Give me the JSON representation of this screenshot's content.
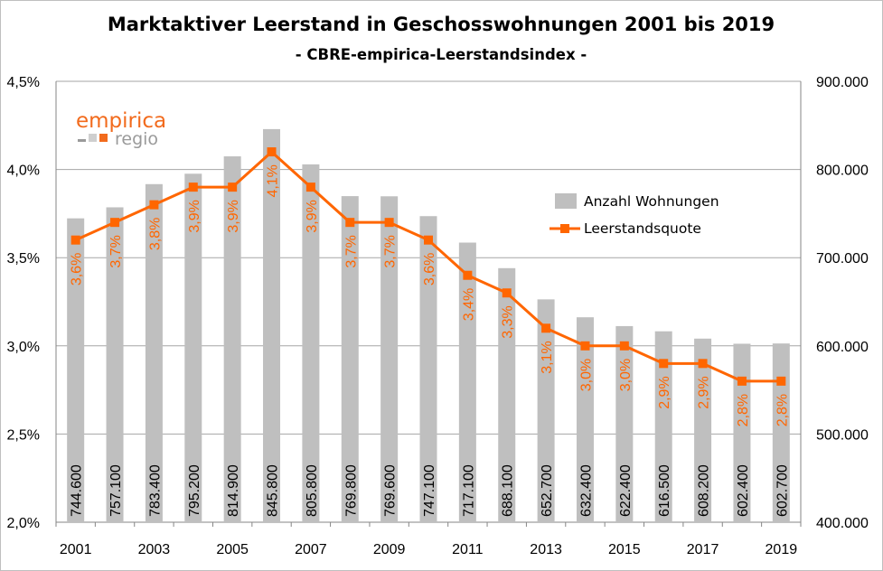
{
  "chart_data": {
    "type": "bar",
    "title": "Marktaktiver Leerstand in Geschosswohnungen 2001 bis 2019",
    "subtitle": "- CBRE-empirica-Leerstandsindex -",
    "categories": [
      "2001",
      "2002",
      "2003",
      "2004",
      "2005",
      "2006",
      "2007",
      "2008",
      "2009",
      "2010",
      "2011",
      "2012",
      "2013",
      "2014",
      "2015",
      "2016",
      "2017",
      "2018",
      "2019"
    ],
    "x_tick_labels": [
      "2001",
      "2003",
      "2005",
      "2007",
      "2009",
      "2011",
      "2013",
      "2015",
      "2017",
      "2019"
    ],
    "series": [
      {
        "name": "Anzahl Wohnungen",
        "type": "bar",
        "axis": "right",
        "color": "#bfbfbf",
        "values": [
          744600,
          757100,
          783400,
          795200,
          814900,
          845800,
          805800,
          769800,
          769600,
          747100,
          717100,
          688100,
          652700,
          632400,
          622400,
          616500,
          608200,
          602400,
          602700
        ],
        "labels": [
          "744.600",
          "757.100",
          "783.400",
          "795.200",
          "814.900",
          "845.800",
          "805.800",
          "769.800",
          "769.600",
          "747.100",
          "717.100",
          "688.100",
          "652.700",
          "632.400",
          "622.400",
          "616.500",
          "608.200",
          "602.400",
          "602.700"
        ]
      },
      {
        "name": "Leerstandsquote",
        "type": "line",
        "axis": "left",
        "color": "#ff6600",
        "values": [
          3.6,
          3.7,
          3.8,
          3.9,
          3.9,
          4.1,
          3.9,
          3.7,
          3.7,
          3.6,
          3.4,
          3.3,
          3.1,
          3.0,
          3.0,
          2.9,
          2.9,
          2.8,
          2.8
        ],
        "labels": [
          "3,6%",
          "3,7%",
          "3,8%",
          "3,9%",
          "3,9%",
          "4,1%",
          "3,9%",
          "3,7%",
          "3,7%",
          "3,6%",
          "3,4%",
          "3,3%",
          "3,1%",
          "3,0%",
          "3,0%",
          "2,9%",
          "2,9%",
          "2,8%",
          "2,8%"
        ]
      }
    ],
    "y_left": {
      "min": 2.0,
      "max": 4.5,
      "ticks": [
        "2,0%",
        "2,5%",
        "3,0%",
        "3,5%",
        "4,0%",
        "4,5%"
      ]
    },
    "y_right": {
      "min": 400000,
      "max": 900000,
      "ticks": [
        "400.000",
        "500.000",
        "600.000",
        "700.000",
        "800.000",
        "900.000"
      ]
    },
    "grid": true,
    "legend_position": "right"
  },
  "logo": {
    "word": "empirica",
    "sub": "regio",
    "accent": "#f26b1d",
    "gray": "#9a9a9a"
  }
}
